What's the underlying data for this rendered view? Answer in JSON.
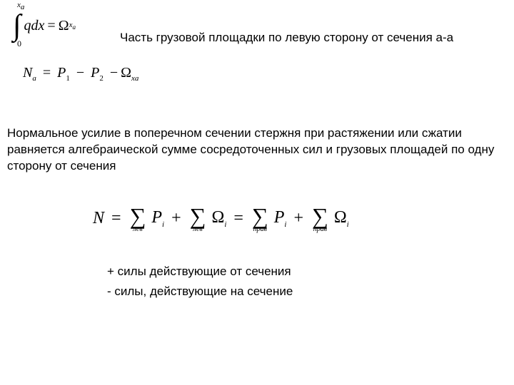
{
  "integral": {
    "upper_limit": "x",
    "upper_limit_sub": "a",
    "lower_limit": "0",
    "integrand_q": "q",
    "integrand_dx": "dx",
    "equals": "=",
    "rhs_omega": "Ω",
    "rhs_sub": "x",
    "rhs_sub2": "a"
  },
  "top_text": "Часть грузовой площадки по левую сторону от сечения а-а",
  "eq2": {
    "N": "N",
    "N_sub": "a",
    "eq": "=",
    "P1": "P",
    "P1_sub": "1",
    "minus1": "−",
    "P2": "P",
    "P2_sub": "2",
    "minus2": "−",
    "Omega": "Ω",
    "Omega_sub": "xa"
  },
  "body_text": "Нормальное усилие в поперечном сечении стержня при растяжении или сжатии равняется алгебраической сумме сосредоточенных сил и грузовых площадей по одну сторону от сечения",
  "big_eq": {
    "N": "N",
    "eq1": "=",
    "sum_lev": "лев",
    "sum_prav": "прав",
    "P": "P",
    "P_sub": "i",
    "plus": "+",
    "Omega": "Ω",
    "Omega_sub": "i",
    "eq2": "="
  },
  "notes": {
    "plus_line": "+ силы действующие от сечения",
    "minus_line": "- силы, действующие на сечение"
  }
}
